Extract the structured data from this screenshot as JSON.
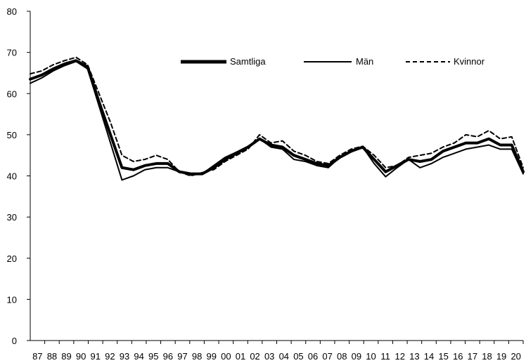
{
  "chart_data": {
    "type": "line",
    "title": "",
    "xlabel": "",
    "ylabel": "",
    "ylim": [
      0,
      80
    ],
    "yticks": [
      "0",
      "10",
      "20",
      "30",
      "40",
      "50",
      "60",
      "70",
      "80"
    ],
    "x_tick_labels": [
      "87",
      "88",
      "89",
      "90",
      "91",
      "92",
      "93",
      "94",
      "95",
      "96",
      "97",
      "98",
      "99",
      "00",
      "01",
      "02",
      "03",
      "04",
      "05",
      "06",
      "07",
      "08",
      "09",
      "10",
      "11",
      "12",
      "13",
      "14",
      "15",
      "16",
      "17",
      "18",
      "19",
      "20"
    ],
    "grid": false,
    "legend_position": "top-right",
    "series": [
      {
        "name": "Samtliga",
        "style": "thick",
        "points": [
          [
            0,
            63.5
          ],
          [
            1,
            64.5
          ],
          [
            2,
            66
          ],
          [
            3,
            67.2
          ],
          [
            4,
            68
          ],
          [
            5,
            66.5
          ],
          [
            6,
            58
          ],
          [
            7,
            50
          ],
          [
            8,
            42
          ],
          [
            9,
            41.5
          ],
          [
            10,
            42.5
          ],
          [
            11,
            43
          ],
          [
            12,
            43
          ],
          [
            13,
            41
          ],
          [
            14,
            40.5
          ],
          [
            15,
            40.5
          ],
          [
            16,
            42
          ],
          [
            17,
            44
          ],
          [
            18,
            45.5
          ],
          [
            19,
            47
          ],
          [
            20,
            49
          ],
          [
            21,
            47.5
          ],
          [
            22,
            47
          ],
          [
            23,
            45
          ],
          [
            24,
            44
          ],
          [
            25,
            43
          ],
          [
            26,
            42.5
          ],
          [
            27,
            44.5
          ],
          [
            28,
            46
          ],
          [
            29,
            47
          ],
          [
            30,
            44
          ],
          [
            31,
            41
          ],
          [
            32,
            42.5
          ],
          [
            33,
            44
          ],
          [
            34,
            43.5
          ],
          [
            35,
            44
          ],
          [
            36,
            46
          ],
          [
            37,
            47
          ],
          [
            38,
            48
          ],
          [
            39,
            48
          ],
          [
            40,
            49
          ],
          [
            41,
            47.5
          ],
          [
            42,
            47.5
          ],
          [
            43,
            41
          ]
        ]
      },
      {
        "name": "Män",
        "style": "thin",
        "points": [
          [
            0,
            62.5
          ],
          [
            1,
            63.8
          ],
          [
            2,
            65.5
          ],
          [
            3,
            66.8
          ],
          [
            4,
            67.8
          ],
          [
            5,
            66
          ],
          [
            6,
            57
          ],
          [
            7,
            48
          ],
          [
            8,
            39
          ],
          [
            9,
            40
          ],
          [
            10,
            41.5
          ],
          [
            11,
            42
          ],
          [
            12,
            42
          ],
          [
            13,
            41
          ],
          [
            14,
            40.2
          ],
          [
            15,
            40.5
          ],
          [
            16,
            42.5
          ],
          [
            17,
            44.5
          ],
          [
            18,
            45.8
          ],
          [
            19,
            47.2
          ],
          [
            20,
            49
          ],
          [
            21,
            47
          ],
          [
            22,
            46.5
          ],
          [
            23,
            44
          ],
          [
            24,
            43.5
          ],
          [
            25,
            42.5
          ],
          [
            26,
            42
          ],
          [
            27,
            44.5
          ],
          [
            28,
            46
          ],
          [
            29,
            47
          ],
          [
            30,
            43
          ],
          [
            31,
            39.8
          ],
          [
            32,
            42
          ],
          [
            33,
            44
          ],
          [
            34,
            42
          ],
          [
            35,
            43
          ],
          [
            36,
            44.5
          ],
          [
            37,
            45.5
          ],
          [
            38,
            46.5
          ],
          [
            39,
            47
          ],
          [
            40,
            47.5
          ],
          [
            41,
            46.5
          ],
          [
            42,
            46.5
          ],
          [
            43,
            40.5
          ]
        ]
      },
      {
        "name": "Kvinnor",
        "style": "dashed",
        "points": [
          [
            0,
            64.8
          ],
          [
            1,
            65.5
          ],
          [
            2,
            67
          ],
          [
            3,
            68
          ],
          [
            4,
            68.8
          ],
          [
            5,
            67
          ],
          [
            6,
            60
          ],
          [
            7,
            53
          ],
          [
            8,
            45
          ],
          [
            9,
            43.5
          ],
          [
            10,
            44
          ],
          [
            11,
            45
          ],
          [
            12,
            44
          ],
          [
            13,
            41
          ],
          [
            14,
            40
          ],
          [
            15,
            40.8
          ],
          [
            16,
            41.5
          ],
          [
            17,
            43.5
          ],
          [
            18,
            45
          ],
          [
            19,
            46.5
          ],
          [
            20,
            50
          ],
          [
            21,
            48
          ],
          [
            22,
            48.5
          ],
          [
            23,
            46
          ],
          [
            24,
            45
          ],
          [
            25,
            43.5
          ],
          [
            26,
            43
          ],
          [
            27,
            45
          ],
          [
            28,
            46.5
          ],
          [
            29,
            47.2
          ],
          [
            30,
            45
          ],
          [
            31,
            42
          ],
          [
            32,
            42.5
          ],
          [
            33,
            44.5
          ],
          [
            34,
            45
          ],
          [
            35,
            45.5
          ],
          [
            36,
            47
          ],
          [
            37,
            48
          ],
          [
            38,
            50
          ],
          [
            39,
            49.5
          ],
          [
            40,
            51
          ],
          [
            41,
            49
          ],
          [
            42,
            49.5
          ],
          [
            43,
            42
          ]
        ]
      }
    ]
  },
  "colors": {
    "line": "#000000",
    "background": "#ffffff"
  }
}
